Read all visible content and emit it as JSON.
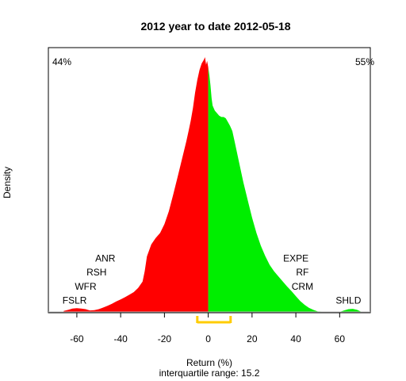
{
  "chart_data": {
    "type": "area",
    "title": "2012  year to date 2012-05-18",
    "xlabel": "Return (%)",
    "ylabel": "Density",
    "subtitle": "interquartile range: 15.2",
    "xlim": [
      -73,
      74
    ],
    "ylim": [
      0,
      1
    ],
    "x_ticks": [
      -60,
      -40,
      -20,
      0,
      20,
      40,
      60
    ],
    "grid": false,
    "colors": {
      "negative": "#ff0000",
      "positive": "#00ee00",
      "iqr": "#ffcc00",
      "baseline": "#bebebe"
    },
    "summary": {
      "pct_negative": "44%",
      "pct_positive": "55%",
      "iqr_low": -5,
      "iqr_high": 10.2
    },
    "density_x": [
      -66,
      -64,
      -62,
      -60,
      -58,
      -56,
      -55,
      -54,
      -52,
      -50,
      -48,
      -46,
      -44,
      -42,
      -40,
      -38,
      -36,
      -34,
      -32,
      -30,
      -29,
      -28,
      -26,
      -24,
      -22,
      -20,
      -18,
      -16,
      -14,
      -12,
      -10,
      -9,
      -8,
      -7,
      -6,
      -5,
      -4,
      -3,
      -2,
      -1.5,
      -1,
      -0.5,
      0,
      0.5,
      1,
      1.5,
      2,
      3,
      4,
      5,
      6,
      7,
      8,
      9,
      10,
      11,
      12,
      14,
      16,
      18,
      20,
      22,
      24,
      26,
      28,
      30,
      32,
      34,
      36,
      38,
      40,
      42,
      44,
      46,
      48,
      50,
      60,
      62,
      64,
      66,
      68,
      70
    ],
    "density_y": [
      0.004,
      0.008,
      0.013,
      0.015,
      0.013,
      0.011,
      0.008,
      0.006,
      0.007,
      0.011,
      0.017,
      0.024,
      0.032,
      0.041,
      0.049,
      0.058,
      0.068,
      0.078,
      0.094,
      0.119,
      0.16,
      0.218,
      0.265,
      0.29,
      0.31,
      0.345,
      0.395,
      0.46,
      0.53,
      0.6,
      0.67,
      0.71,
      0.75,
      0.8,
      0.86,
      0.91,
      0.95,
      0.975,
      0.99,
      1.0,
      0.97,
      0.985,
      0.96,
      0.93,
      0.89,
      0.84,
      0.81,
      0.79,
      0.78,
      0.77,
      0.765,
      0.765,
      0.76,
      0.745,
      0.73,
      0.71,
      0.67,
      0.59,
      0.51,
      0.44,
      0.37,
      0.31,
      0.26,
      0.22,
      0.185,
      0.16,
      0.14,
      0.12,
      0.1,
      0.082,
      0.062,
      0.043,
      0.028,
      0.016,
      0.008,
      0.002,
      0.0,
      0.006,
      0.011,
      0.012,
      0.008,
      0.0
    ],
    "annotations": [
      {
        "text": "44%",
        "color": "#ff0000"
      },
      {
        "text": "55%",
        "color": "#008b00"
      },
      {
        "text": "ANR",
        "x": -47,
        "y": 0.21
      },
      {
        "text": "RSH",
        "x": -51,
        "y": 0.155
      },
      {
        "text": "WFR",
        "x": -56,
        "y": 0.1
      },
      {
        "text": "FSLR",
        "x": -61,
        "y": 0.045
      },
      {
        "text": "EXPE",
        "x": 40,
        "y": 0.21
      },
      {
        "text": "RF",
        "x": 43,
        "y": 0.155
      },
      {
        "text": "CRM",
        "x": 43,
        "y": 0.1
      },
      {
        "text": "SHLD",
        "x": 64,
        "y": 0.045
      }
    ]
  }
}
